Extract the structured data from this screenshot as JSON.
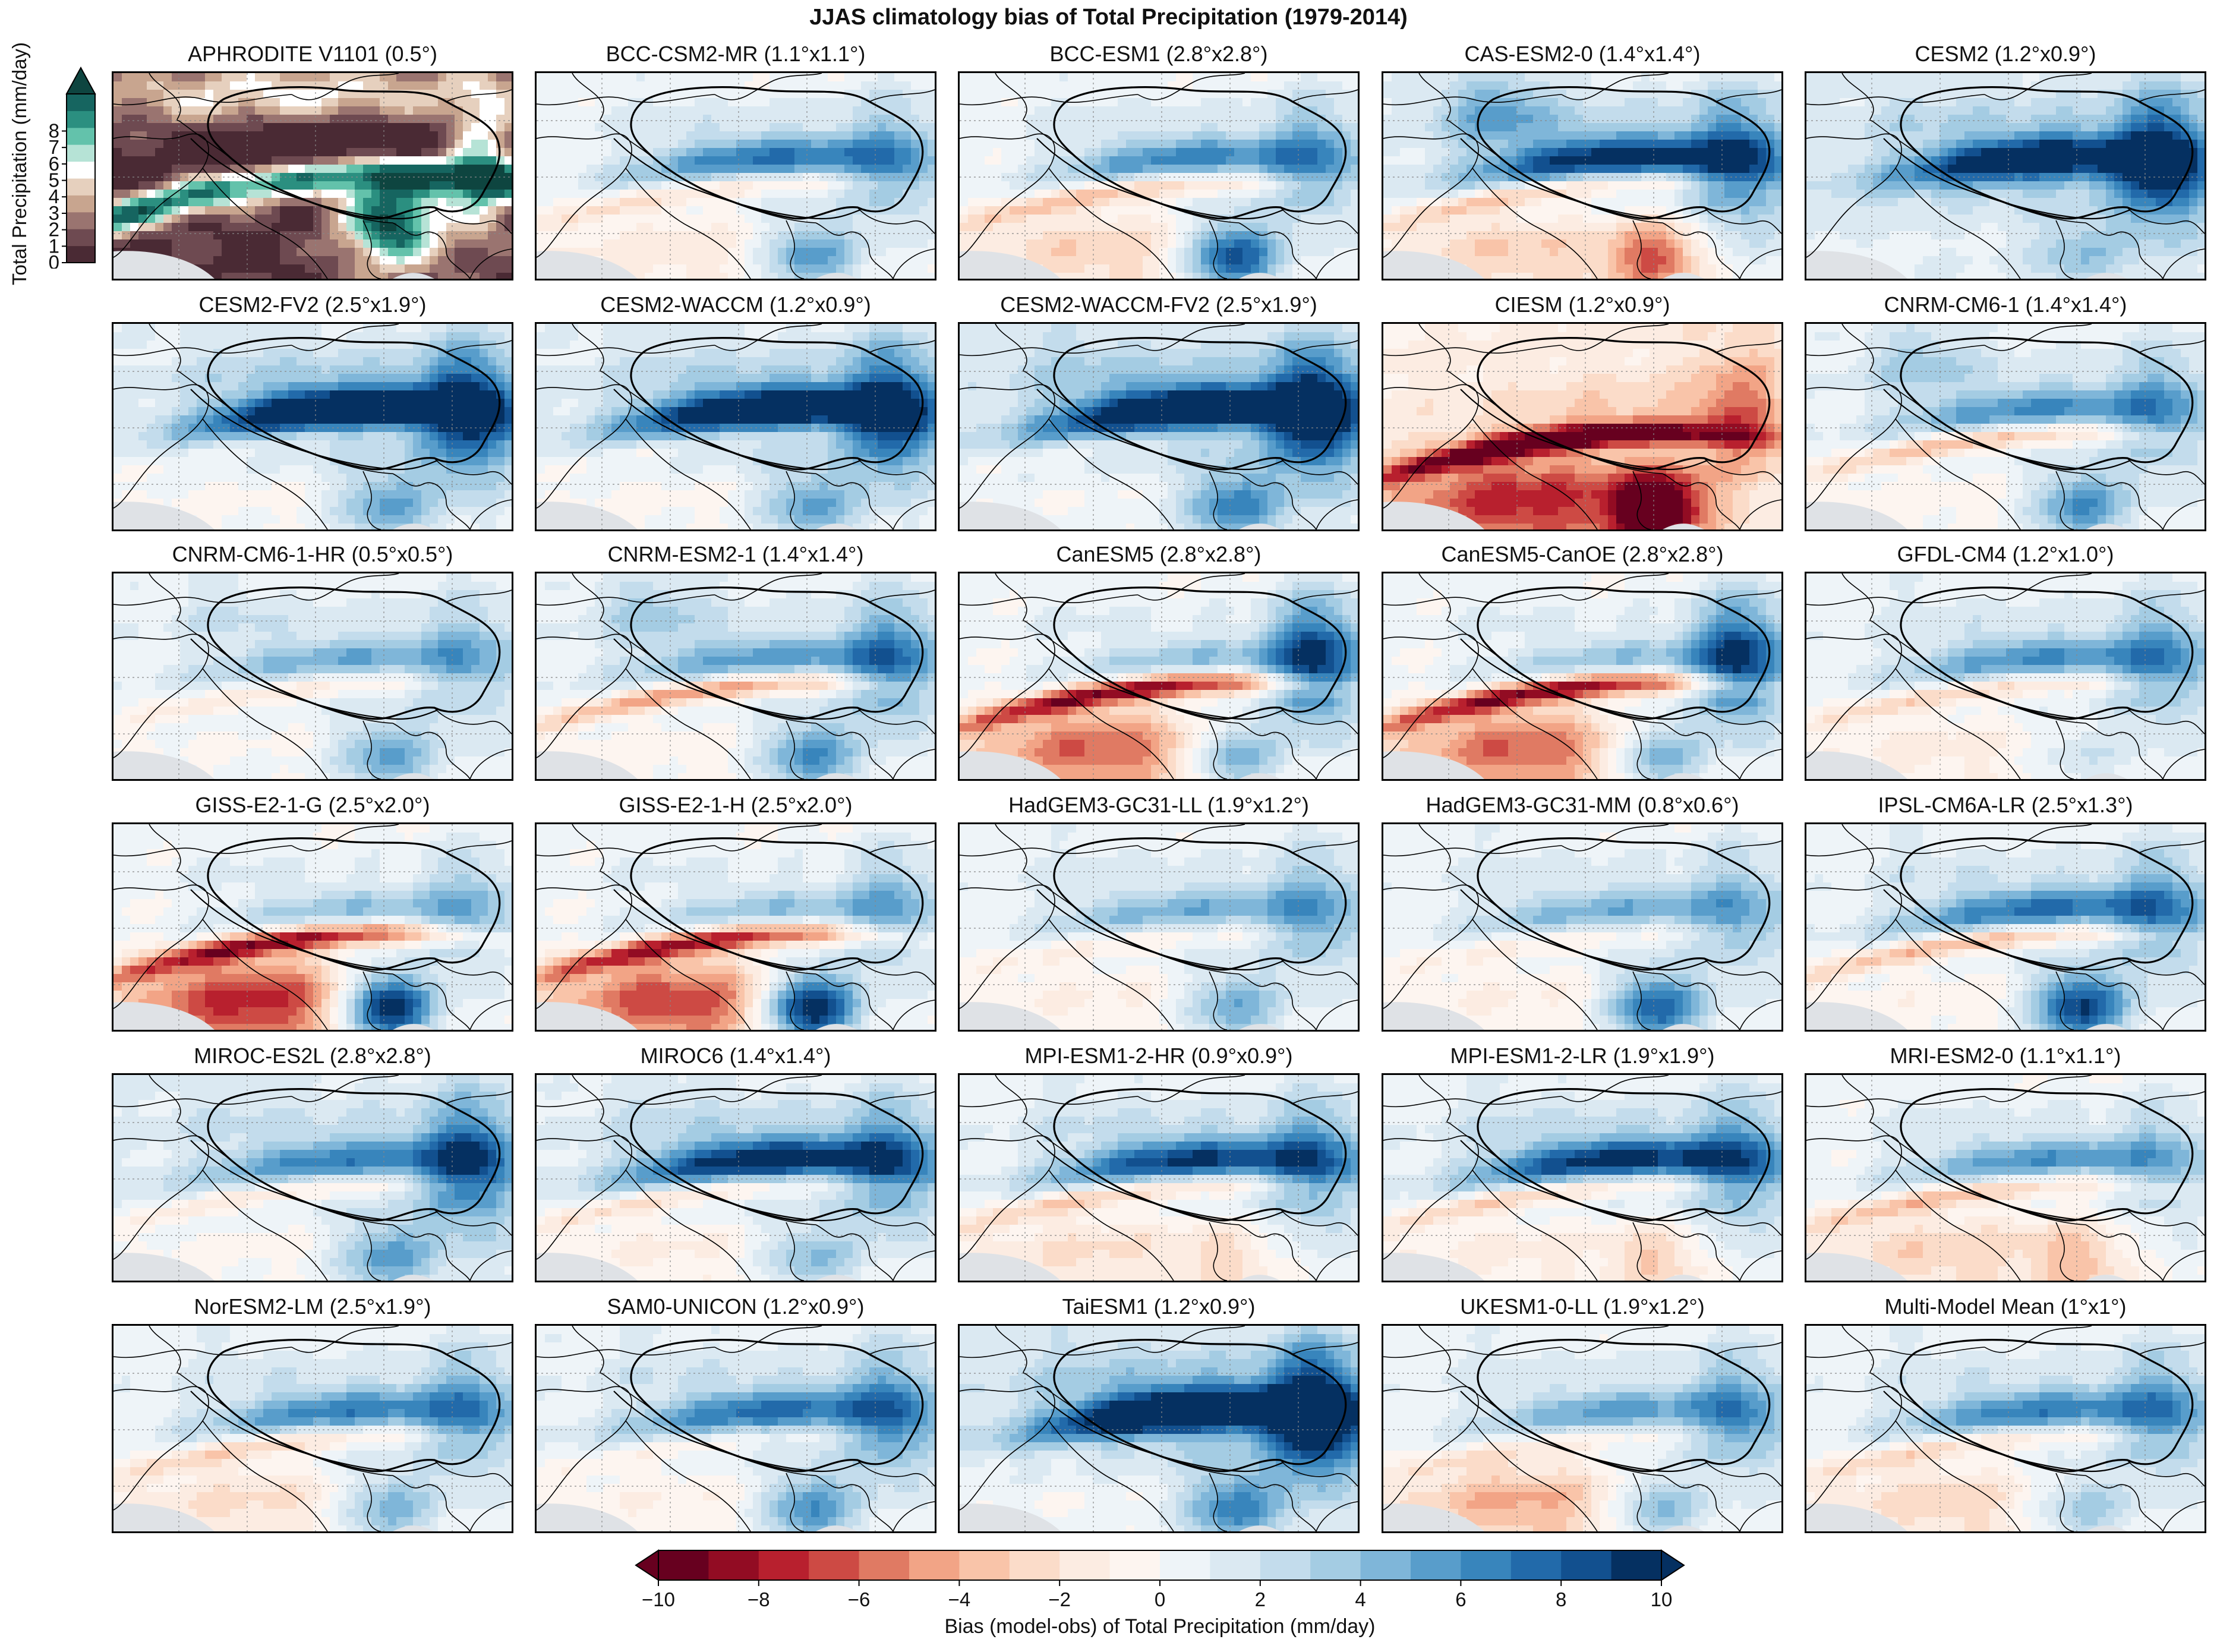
{
  "figure": {
    "title": "JJAS climatology bias of Total Precipitation (1979-2014)",
    "panels": [
      {
        "title": "APHRODITE V1101 (0.5°)",
        "kind": "obs"
      },
      {
        "title": "BCC-CSM2-MR (1.1°x1.1°)",
        "kind": "bias",
        "pattern": {
          "tpWet": 0.55,
          "hindRed": 0.35,
          "eastWet": 0.4,
          "nwWet": 0.1,
          "indiaRed": 0.2,
          "bayWet": 0.6,
          "global": 0.0
        }
      },
      {
        "title": "BCC-ESM1 (2.8°x2.8°)",
        "kind": "bias",
        "pattern": {
          "tpWet": 0.5,
          "hindRed": 0.45,
          "eastWet": 0.45,
          "nwWet": 0.1,
          "indiaRed": 0.35,
          "bayWet": 0.9,
          "global": 0.0
        }
      },
      {
        "title": "CAS-ESM2-0 (1.4°x1.4°)",
        "kind": "bias",
        "pattern": {
          "tpWet": 0.75,
          "hindRed": 0.5,
          "eastWet": 0.6,
          "nwWet": 0.6,
          "indiaRed": 0.45,
          "bayWet": -0.6,
          "global": 0.05
        }
      },
      {
        "title": "CESM2 (1.2°x0.9°)",
        "kind": "bias",
        "pattern": {
          "tpWet": 0.85,
          "hindRed": 0.0,
          "eastWet": 0.8,
          "nwWet": 0.1,
          "indiaRed": 0.0,
          "bayWet": 0.3,
          "global": 0.08
        }
      },
      {
        "title": "CESM2-FV2 (2.5°x1.9°)",
        "kind": "bias",
        "pattern": {
          "tpWet": 1.0,
          "hindRed": 0.2,
          "eastWet": 0.8,
          "nwWet": 0.1,
          "indiaRed": 0.1,
          "bayWet": 0.5,
          "global": 0.05
        }
      },
      {
        "title": "CESM2-WACCM (1.2°x0.9°)",
        "kind": "bias",
        "pattern": {
          "tpWet": 0.95,
          "hindRed": 0.2,
          "eastWet": 0.75,
          "nwWet": 0.1,
          "indiaRed": 0.1,
          "bayWet": 0.5,
          "global": 0.05
        }
      },
      {
        "title": "CESM2-WACCM-FV2 (2.5°x1.9°)",
        "kind": "bias",
        "pattern": {
          "tpWet": 1.0,
          "hindRed": 0.2,
          "eastWet": 0.85,
          "nwWet": 0.15,
          "indiaRed": 0.1,
          "bayWet": 0.6,
          "global": 0.08
        }
      },
      {
        "title": "CIESM (1.2°x0.9°)",
        "kind": "bias",
        "pattern": {
          "tpWet": -0.15,
          "hindRed": 1.1,
          "eastWet": -0.4,
          "nwWet": 0.0,
          "indiaRed": 0.8,
          "bayWet": -1.0,
          "global": -0.12
        }
      },
      {
        "title": "CNRM-CM6-1 (1.4°x1.4°)",
        "kind": "bias",
        "pattern": {
          "tpWet": 0.45,
          "hindRed": 0.55,
          "eastWet": 0.4,
          "nwWet": 0.4,
          "indiaRed": 0.1,
          "bayWet": 0.6,
          "global": 0.03
        }
      },
      {
        "title": "CNRM-CM6-1-HR (0.5°x0.5°)",
        "kind": "bias",
        "pattern": {
          "tpWet": 0.35,
          "hindRed": 0.3,
          "eastWet": 0.35,
          "nwWet": 0.2,
          "indiaRed": 0.05,
          "bayWet": 0.5,
          "global": 0.03
        }
      },
      {
        "title": "CNRM-ESM2-1 (1.4°x1.4°)",
        "kind": "bias",
        "pattern": {
          "tpWet": 0.4,
          "hindRed": 0.65,
          "eastWet": 0.55,
          "nwWet": 0.4,
          "indiaRed": 0.1,
          "bayWet": 0.6,
          "global": 0.03
        }
      },
      {
        "title": "CanESM5 (2.8°x2.8°)",
        "kind": "bias",
        "pattern": {
          "tpWet": 0.3,
          "hindRed": 0.95,
          "eastWet": 0.85,
          "nwWet": 0.1,
          "indiaRed": 0.75,
          "bayWet": 0.6,
          "global": 0.0
        }
      },
      {
        "title": "CanESM5-CanOE (2.8°x2.8°)",
        "kind": "bias",
        "pattern": {
          "tpWet": 0.3,
          "hindRed": 0.95,
          "eastWet": 0.85,
          "nwWet": 0.1,
          "indiaRed": 0.75,
          "bayWet": 0.6,
          "global": 0.0
        }
      },
      {
        "title": "GFDL-CM4 (1.2°x1.0°)",
        "kind": "bias",
        "pattern": {
          "tpWet": 0.45,
          "hindRed": 0.4,
          "eastWet": 0.45,
          "nwWet": 0.1,
          "indiaRed": 0.2,
          "bayWet": 0.2,
          "global": 0.02
        }
      },
      {
        "title": "GISS-E2-1-G (2.5°x2.0°)",
        "kind": "bias",
        "pattern": {
          "tpWet": 0.3,
          "hindRed": 0.9,
          "eastWet": 0.35,
          "nwWet": 0.1,
          "indiaRed": 0.95,
          "bayWet": 1.2,
          "global": 0.0
        }
      },
      {
        "title": "GISS-E2-1-H (2.5°x2.0°)",
        "kind": "bias",
        "pattern": {
          "tpWet": 0.3,
          "hindRed": 0.85,
          "eastWet": 0.4,
          "nwWet": 0.1,
          "indiaRed": 0.85,
          "bayWet": 1.2,
          "global": 0.0
        }
      },
      {
        "title": "HadGEM3-GC31-LL (1.9°x1.2°)",
        "kind": "bias",
        "pattern": {
          "tpWet": 0.35,
          "hindRed": 0.2,
          "eastWet": 0.4,
          "nwWet": 0.1,
          "indiaRed": 0.15,
          "bayWet": 0.5,
          "global": 0.02
        }
      },
      {
        "title": "HadGEM3-GC31-MM (0.8°x0.6°)",
        "kind": "bias",
        "pattern": {
          "tpWet": 0.35,
          "hindRed": 0.2,
          "eastWet": 0.35,
          "nwWet": 0.1,
          "indiaRed": 0.15,
          "bayWet": 0.8,
          "global": 0.02
        }
      },
      {
        "title": "IPSL-CM6A-LR (2.5°x1.3°)",
        "kind": "bias",
        "pattern": {
          "tpWet": 0.55,
          "hindRed": 0.6,
          "eastWet": 0.45,
          "nwWet": 0.1,
          "indiaRed": 0.1,
          "bayWet": 0.9,
          "global": 0.02
        }
      },
      {
        "title": "MIROC-ES2L (2.8°x2.8°)",
        "kind": "bias",
        "pattern": {
          "tpWet": 0.45,
          "hindRed": 0.35,
          "eastWet": 0.7,
          "nwWet": 0.1,
          "indiaRed": 0.15,
          "bayWet": 0.5,
          "global": 0.08
        }
      },
      {
        "title": "MIROC6 (1.4°x1.4°)",
        "kind": "bias",
        "pattern": {
          "tpWet": 0.8,
          "hindRed": 0.45,
          "eastWet": 0.5,
          "nwWet": 0.15,
          "indiaRed": 0.2,
          "bayWet": 0.4,
          "global": 0.04
        }
      },
      {
        "title": "MPI-ESM1-2-HR (0.9°x0.9°)",
        "kind": "bias",
        "pattern": {
          "tpWet": 0.7,
          "hindRed": 0.5,
          "eastWet": 0.5,
          "nwWet": 0.1,
          "indiaRed": 0.3,
          "bayWet": -0.2,
          "global": 0.02
        }
      },
      {
        "title": "MPI-ESM1-2-LR (1.9°x1.9°)",
        "kind": "bias",
        "pattern": {
          "tpWet": 0.75,
          "hindRed": 0.5,
          "eastWet": 0.5,
          "nwWet": 0.1,
          "indiaRed": 0.2,
          "bayWet": -0.3,
          "global": 0.02
        }
      },
      {
        "title": "MRI-ESM2-0 (1.1°x1.1°)",
        "kind": "bias",
        "pattern": {
          "tpWet": 0.45,
          "hindRed": 0.45,
          "eastWet": 0.3,
          "nwWet": 0.1,
          "indiaRed": 0.35,
          "bayWet": -0.3,
          "global": 0.0
        }
      },
      {
        "title": "NorESM2-LM (2.5°x1.9°)",
        "kind": "bias",
        "pattern": {
          "tpWet": 0.5,
          "hindRed": 0.4,
          "eastWet": 0.45,
          "nwWet": 0.1,
          "indiaRed": 0.3,
          "bayWet": 0.5,
          "global": 0.02
        }
      },
      {
        "title": "SAM0-UNICON (1.2°x0.9°)",
        "kind": "bias",
        "pattern": {
          "tpWet": 0.55,
          "hindRed": 0.2,
          "eastWet": 0.5,
          "nwWet": 0.1,
          "indiaRed": 0.15,
          "bayWet": 0.6,
          "global": 0.03
        }
      },
      {
        "title": "TaiESM1 (1.2°x0.9°)",
        "kind": "bias",
        "pattern": {
          "tpWet": 1.1,
          "hindRed": 0.1,
          "eastWet": 0.95,
          "nwWet": 0.1,
          "indiaRed": 0.1,
          "bayWet": 0.6,
          "global": 0.08
        }
      },
      {
        "title": "UKESM1-0-LL (1.9°x1.2°)",
        "kind": "bias",
        "pattern": {
          "tpWet": 0.4,
          "hindRed": 0.2,
          "eastWet": 0.45,
          "nwWet": 0.1,
          "indiaRed": 0.55,
          "bayWet": 0.5,
          "global": 0.02
        }
      },
      {
        "title": "Multi-Model Mean (1°x1°)",
        "kind": "bias",
        "pattern": {
          "tpWet": 0.5,
          "hindRed": 0.35,
          "eastWet": 0.45,
          "nwWet": 0.1,
          "indiaRed": 0.35,
          "bayWet": 0.4,
          "global": 0.02
        }
      }
    ]
  },
  "obs_colorbar": {
    "label": "Total Precipitation (mm/day)",
    "min": 0,
    "max": 8,
    "extend": "max",
    "ticks": [
      "0",
      "1",
      "2",
      "3",
      "4",
      "5",
      "6",
      "7",
      "8"
    ],
    "colors": [
      "#4a2a34",
      "#6e4a51",
      "#9a7470",
      "#c8a58f",
      "#e6d0be",
      "#ffffff",
      "#b6e3d6",
      "#63c2ab",
      "#2b8f80",
      "#166560",
      "#0e4540"
    ]
  },
  "bias_colorbar": {
    "label": "Bias (model-obs) of Total Precipitation (mm/day)",
    "min": -10,
    "max": 10,
    "extend": "both",
    "ticks": [
      "−10",
      "−8",
      "−6",
      "−4",
      "−2",
      "0",
      "2",
      "4",
      "6",
      "8",
      "10"
    ],
    "colors": [
      "#67001f",
      "#920c23",
      "#b8202e",
      "#cd4a44",
      "#e07a63",
      "#f2a486",
      "#f9c4a9",
      "#fbdcc9",
      "#fcece2",
      "#fdf5f0",
      "#eef4f8",
      "#dbe9f2",
      "#c3dcec",
      "#a4cce3",
      "#7fb6d9",
      "#589dcb",
      "#3885bc",
      "#226aaa",
      "#12508f",
      "#053061"
    ]
  },
  "map_colors": {
    "neutral": "#f6f4f3",
    "ocean_mask": "#dfe2e6",
    "boundary": "#000000",
    "gridline": "#888888"
  }
}
